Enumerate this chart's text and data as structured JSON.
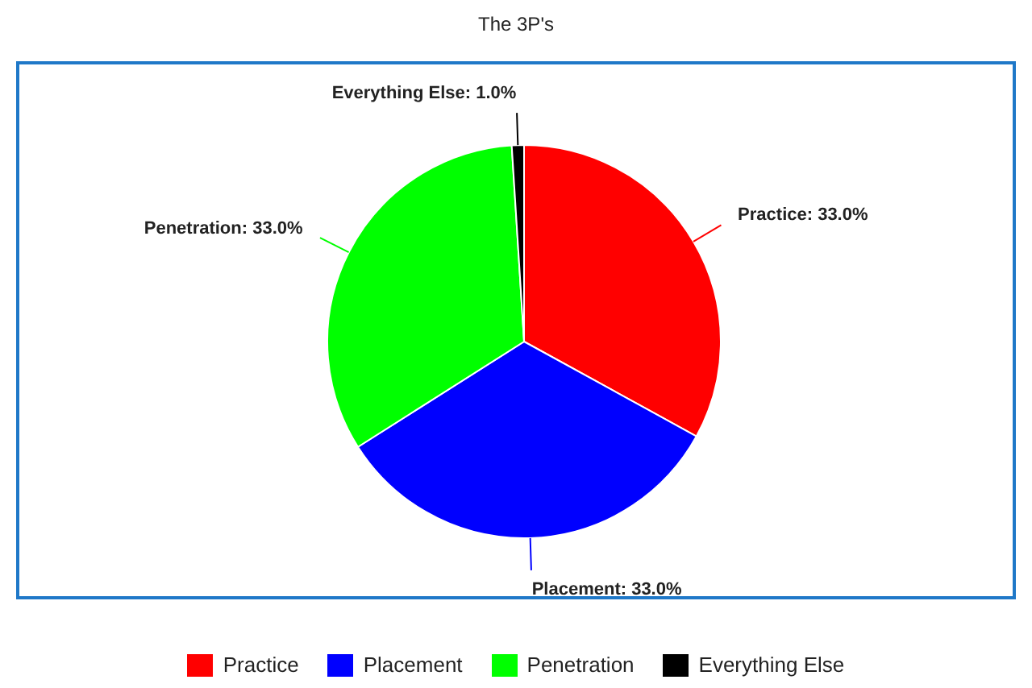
{
  "chart_data": {
    "type": "pie",
    "title": "The 3P's",
    "categories": [
      "Practice",
      "Placement",
      "Penetration",
      "Everything Else"
    ],
    "values": [
      33,
      33,
      33,
      1
    ],
    "value_labels": [
      "Practice: 33.0%",
      "Placement: 33.0%",
      "Penetration: 33.0%",
      "Everything Else: 1.0%"
    ],
    "colors": [
      "#ff0000",
      "#0000ff",
      "#00ff00",
      "#000000"
    ],
    "legend": "bottom"
  }
}
